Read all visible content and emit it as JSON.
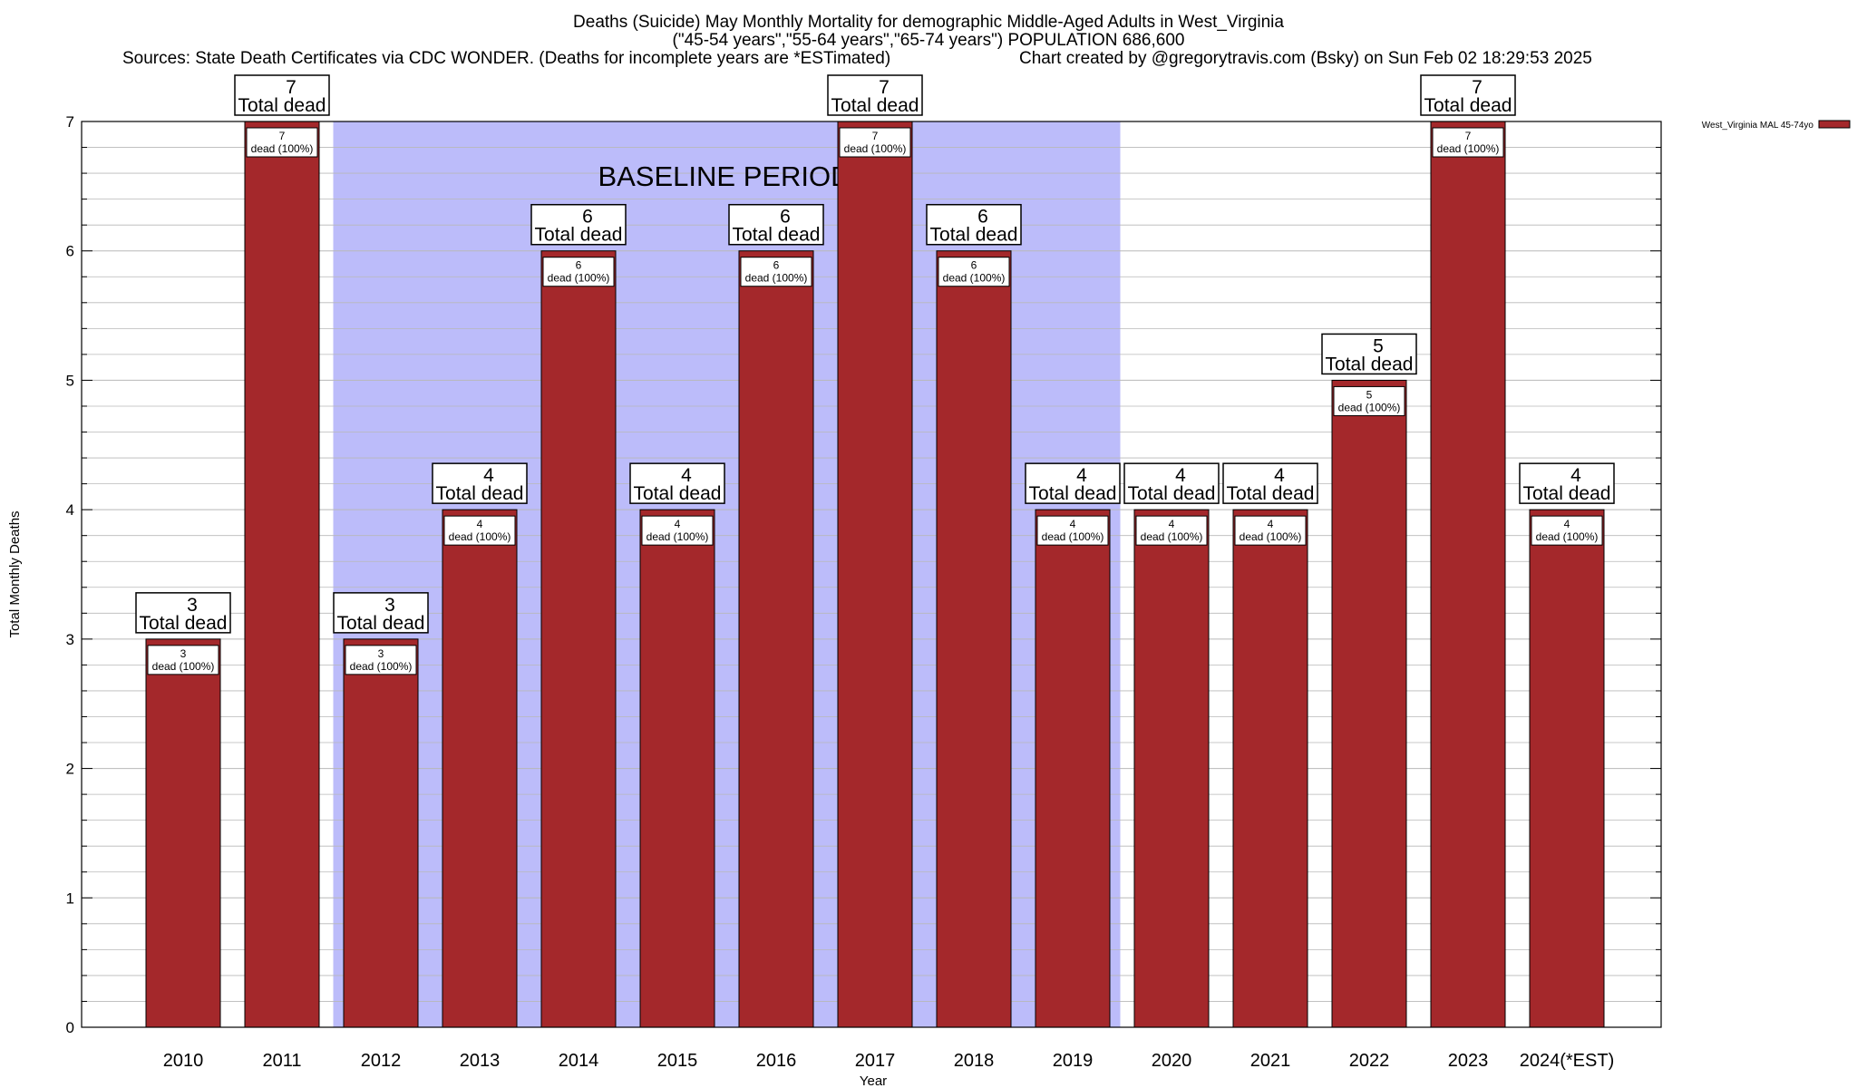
{
  "header": {
    "title_line1": "Deaths (Suicide) May Monthly Mortality for demographic Middle-Aged Adults in West_Virginia",
    "title_line2": "(\"45-54 years\",\"55-64 years\",\"65-74 years\") POPULATION 686,600",
    "sources": "Sources: State Death Certificates via CDC WONDER. (Deaths for incomplete years are *ESTimated)",
    "credit": "Chart created by @gregorytravis.com (Bsky) on Sun Feb 02 18:29:53 2025"
  },
  "colors": {
    "bar": "#a4282b",
    "baseline_band": "#bcbcfa",
    "grid": "#b8b8b8"
  },
  "chart_data": {
    "type": "bar",
    "xlabel": "Year",
    "ylabel": "Total Monthly Deaths",
    "ylim": [
      0,
      7
    ],
    "yticks": [
      0,
      1,
      2,
      3,
      4,
      5,
      6,
      7
    ],
    "grid": true,
    "legend_position": "top-right",
    "categories": [
      "2010",
      "2011",
      "2012",
      "2013",
      "2014",
      "2015",
      "2016",
      "2017",
      "2018",
      "2019",
      "2020",
      "2021",
      "2022",
      "2023",
      "2024(*EST)"
    ],
    "series": [
      {
        "name": "West_Virginia MAL 45-74yo",
        "values": [
          3,
          7,
          3,
          4,
          6,
          4,
          6,
          7,
          6,
          4,
          4,
          4,
          5,
          7,
          4
        ]
      }
    ],
    "total_label": "Total dead",
    "segment_label": "dead (100%)",
    "baseline": {
      "label": "BASELINE PERIOD",
      "start": "2012",
      "end": "2019"
    }
  }
}
